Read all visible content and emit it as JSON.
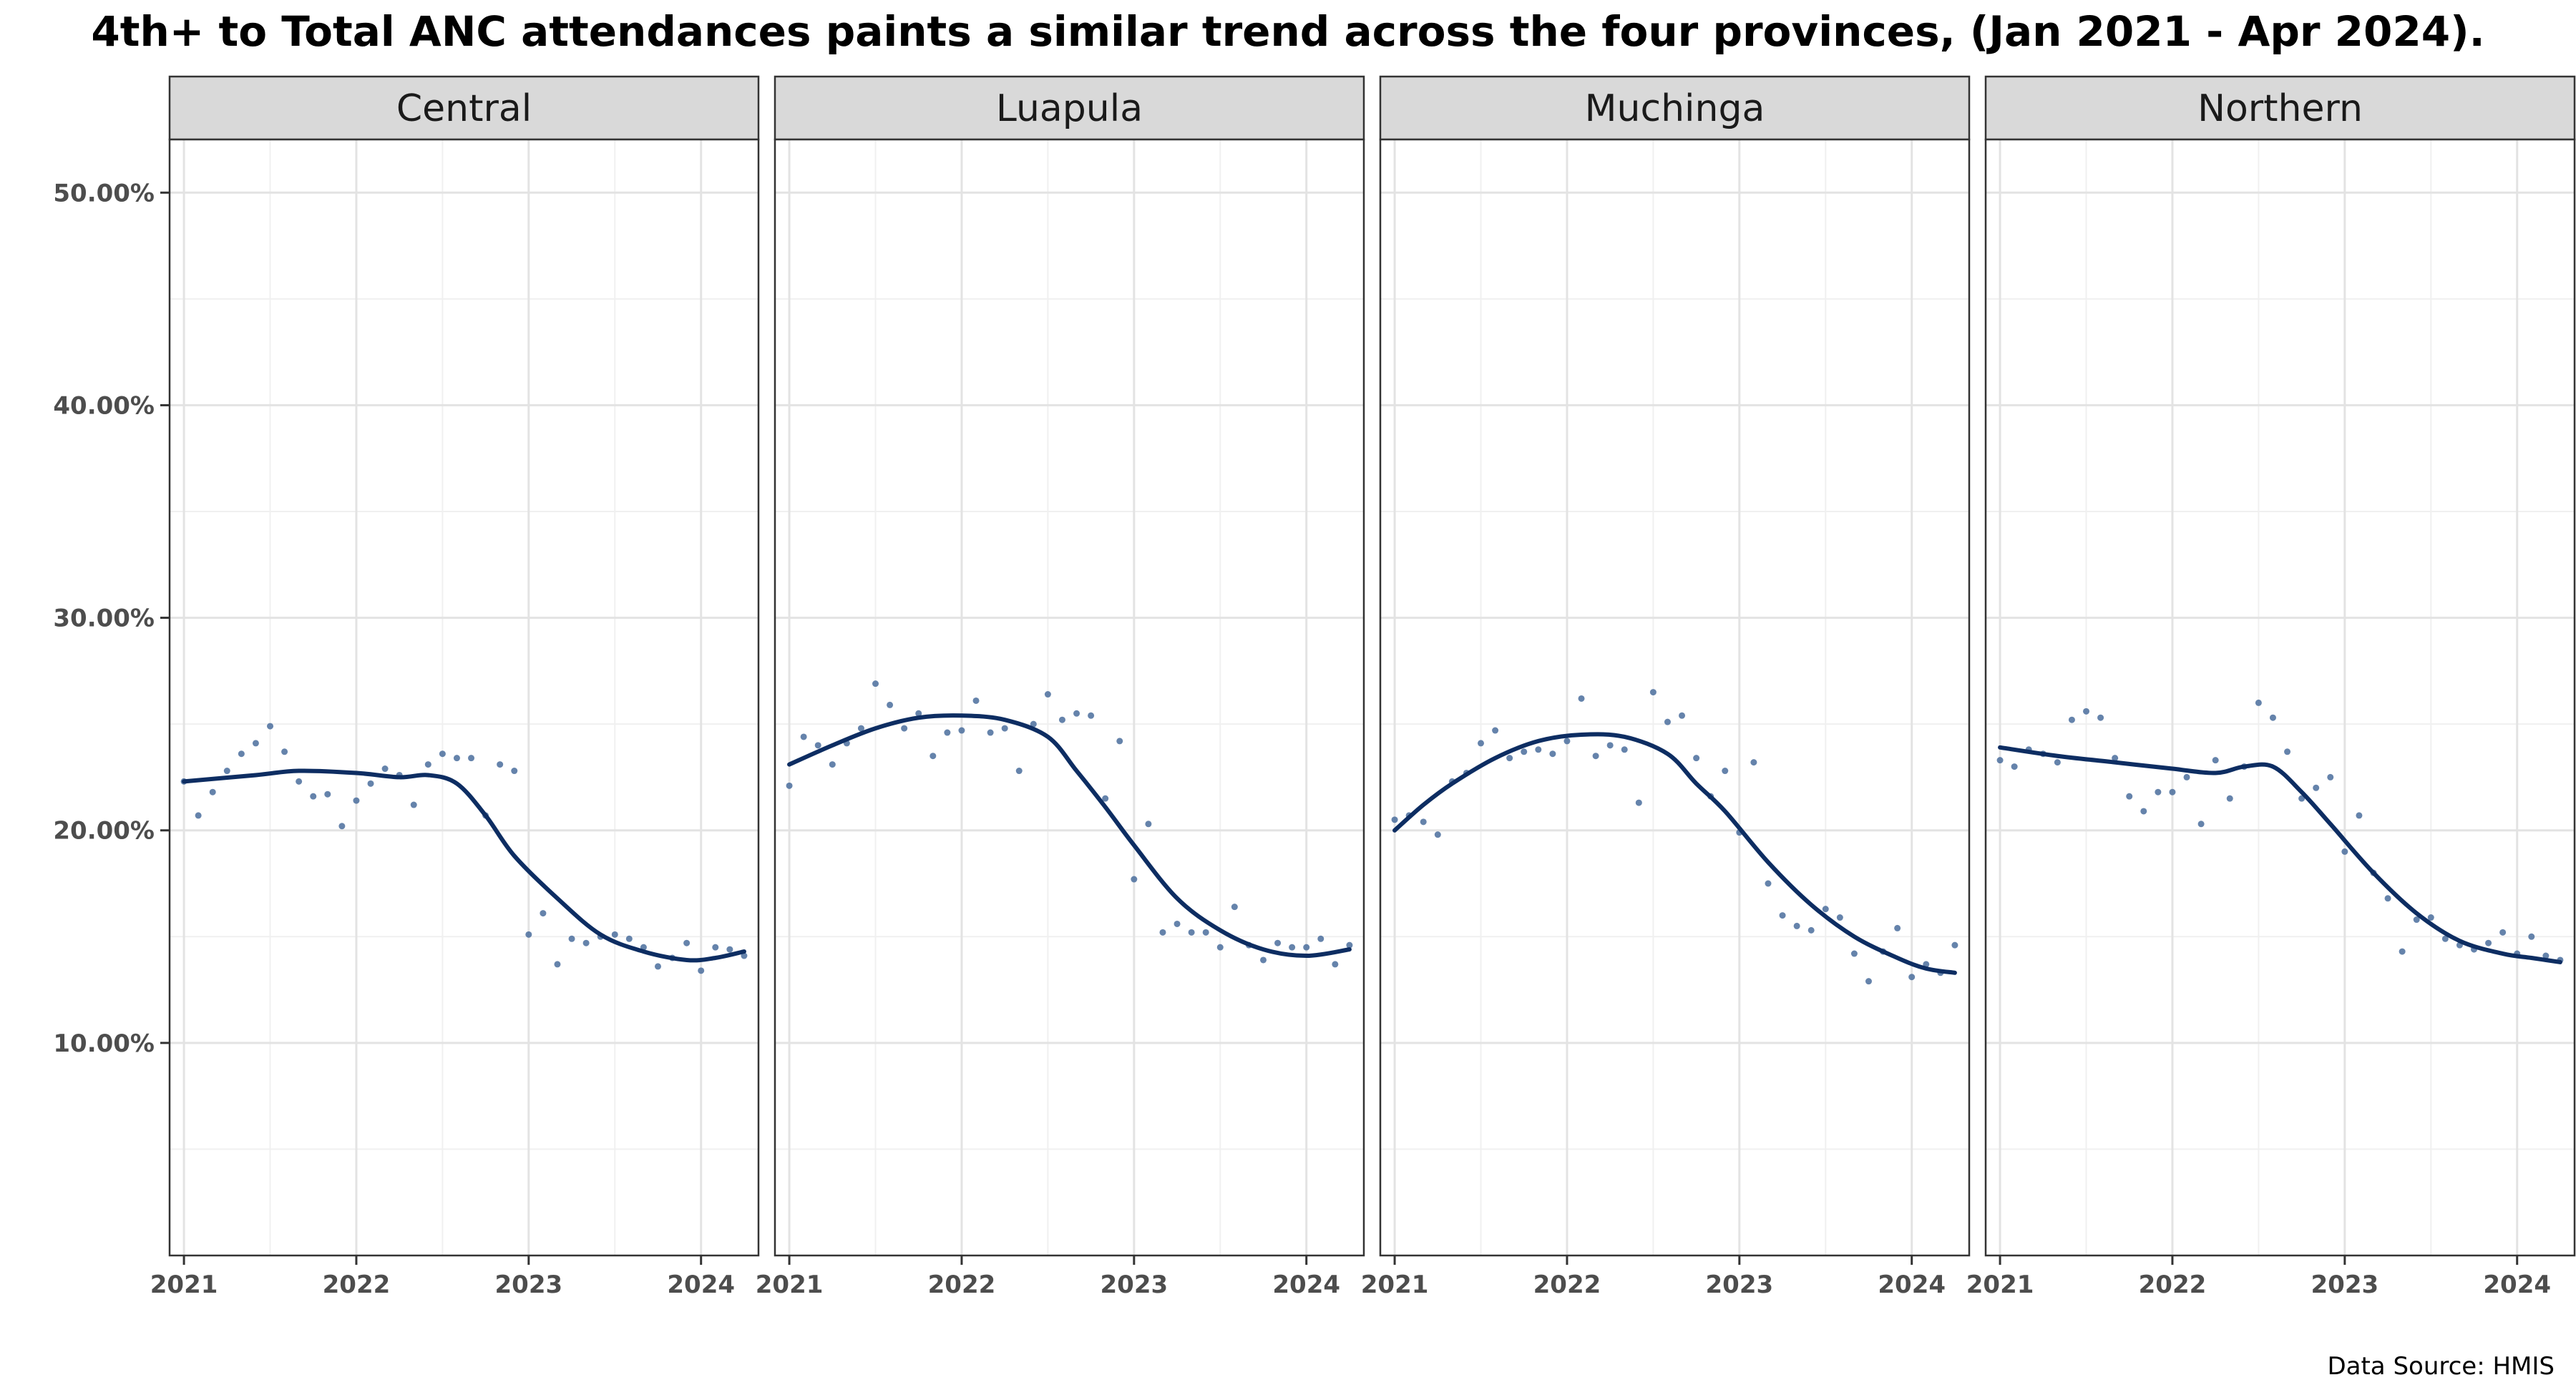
{
  "chart_data": {
    "type": "scatter",
    "title": "4th+ to Total ANC attendances paints a similar trend across the four provinces, (Jan 2021 - Apr 2024).",
    "caption": "Data Source: HMIS",
    "x_ticks": [
      "2021",
      "2022",
      "2023",
      "2024"
    ],
    "y_ticks": [
      "10.00%",
      "20.00%",
      "30.00%",
      "40.00%",
      "50.00%"
    ],
    "y_tick_values": [
      10,
      20,
      30,
      40,
      50
    ],
    "xlim": [
      "2020-12",
      "2024-05"
    ],
    "ylim": [
      0,
      52.5
    ],
    "grid": true,
    "series_color": "#4a6d9c",
    "trend_color": "#0d2d62",
    "panels": [
      {
        "name": "Central",
        "points": [
          [
            "2021-01",
            22.3
          ],
          [
            "2021-02",
            20.7
          ],
          [
            "2021-03",
            21.8
          ],
          [
            "2021-04",
            22.8
          ],
          [
            "2021-05",
            23.6
          ],
          [
            "2021-06",
            24.1
          ],
          [
            "2021-07",
            24.9
          ],
          [
            "2021-08",
            23.7
          ],
          [
            "2021-09",
            22.3
          ],
          [
            "2021-10",
            21.6
          ],
          [
            "2021-11",
            21.7
          ],
          [
            "2021-12",
            20.2
          ],
          [
            "2022-01",
            21.4
          ],
          [
            "2022-02",
            22.2
          ],
          [
            "2022-03",
            22.9
          ],
          [
            "2022-04",
            22.6
          ],
          [
            "2022-05",
            21.2
          ],
          [
            "2022-06",
            23.1
          ],
          [
            "2022-07",
            23.6
          ],
          [
            "2022-08",
            23.4
          ],
          [
            "2022-09",
            23.4
          ],
          [
            "2022-10",
            20.7
          ],
          [
            "2022-11",
            23.1
          ],
          [
            "2022-12",
            22.8
          ],
          [
            "2023-01",
            15.1
          ],
          [
            "2023-02",
            16.1
          ],
          [
            "2023-03",
            13.7
          ],
          [
            "2023-04",
            14.9
          ],
          [
            "2023-05",
            14.7
          ],
          [
            "2023-06",
            15.0
          ],
          [
            "2023-07",
            15.1
          ],
          [
            "2023-08",
            14.9
          ],
          [
            "2023-09",
            14.5
          ],
          [
            "2023-10",
            13.6
          ],
          [
            "2023-11",
            14.0
          ],
          [
            "2023-12",
            14.7
          ],
          [
            "2024-01",
            13.4
          ],
          [
            "2024-02",
            14.5
          ],
          [
            "2024-03",
            14.4
          ],
          [
            "2024-04",
            14.1
          ]
        ],
        "trend": [
          [
            "2021-01",
            22.3
          ],
          [
            "2021-06",
            22.6
          ],
          [
            "2021-09",
            22.8
          ],
          [
            "2022-01",
            22.7
          ],
          [
            "2022-04",
            22.5
          ],
          [
            "2022-06",
            22.6
          ],
          [
            "2022-08",
            22.2
          ],
          [
            "2022-10",
            20.7
          ],
          [
            "2022-12",
            18.8
          ],
          [
            "2023-03",
            16.8
          ],
          [
            "2023-06",
            15.1
          ],
          [
            "2023-09",
            14.3
          ],
          [
            "2023-12",
            13.9
          ],
          [
            "2024-02",
            14.0
          ],
          [
            "2024-04",
            14.3
          ]
        ]
      },
      {
        "name": "Luapula",
        "points": [
          [
            "2021-01",
            22.1
          ],
          [
            "2021-02",
            24.4
          ],
          [
            "2021-03",
            24.0
          ],
          [
            "2021-04",
            23.1
          ],
          [
            "2021-05",
            24.1
          ],
          [
            "2021-06",
            24.8
          ],
          [
            "2021-07",
            26.9
          ],
          [
            "2021-08",
            25.9
          ],
          [
            "2021-09",
            24.8
          ],
          [
            "2021-10",
            25.5
          ],
          [
            "2021-11",
            23.5
          ],
          [
            "2021-12",
            24.6
          ],
          [
            "2022-01",
            24.7
          ],
          [
            "2022-02",
            26.1
          ],
          [
            "2022-03",
            24.6
          ],
          [
            "2022-04",
            24.8
          ],
          [
            "2022-05",
            22.8
          ],
          [
            "2022-06",
            25.0
          ],
          [
            "2022-07",
            26.4
          ],
          [
            "2022-08",
            25.2
          ],
          [
            "2022-09",
            25.5
          ],
          [
            "2022-10",
            25.4
          ],
          [
            "2022-11",
            21.5
          ],
          [
            "2022-12",
            24.2
          ],
          [
            "2023-01",
            17.7
          ],
          [
            "2023-02",
            20.3
          ],
          [
            "2023-03",
            15.2
          ],
          [
            "2023-04",
            15.6
          ],
          [
            "2023-05",
            15.2
          ],
          [
            "2023-06",
            15.2
          ],
          [
            "2023-07",
            14.5
          ],
          [
            "2023-08",
            16.4
          ],
          [
            "2023-09",
            14.6
          ],
          [
            "2023-10",
            13.9
          ],
          [
            "2023-11",
            14.7
          ],
          [
            "2023-12",
            14.5
          ],
          [
            "2024-01",
            14.5
          ],
          [
            "2024-02",
            14.9
          ],
          [
            "2024-03",
            13.7
          ],
          [
            "2024-04",
            14.6
          ]
        ],
        "trend": [
          [
            "2021-01",
            23.1
          ],
          [
            "2021-04",
            24.0
          ],
          [
            "2021-07",
            24.8
          ],
          [
            "2021-10",
            25.3
          ],
          [
            "2022-01",
            25.4
          ],
          [
            "2022-04",
            25.2
          ],
          [
            "2022-07",
            24.4
          ],
          [
            "2022-09",
            22.8
          ],
          [
            "2022-11",
            21.1
          ],
          [
            "2023-01",
            19.3
          ],
          [
            "2023-04",
            16.8
          ],
          [
            "2023-07",
            15.3
          ],
          [
            "2023-10",
            14.4
          ],
          [
            "2024-01",
            14.1
          ],
          [
            "2024-04",
            14.4
          ]
        ]
      },
      {
        "name": "Muchinga",
        "points": [
          [
            "2021-01",
            20.5
          ],
          [
            "2021-02",
            20.7
          ],
          [
            "2021-03",
            20.4
          ],
          [
            "2021-04",
            19.8
          ],
          [
            "2021-05",
            22.3
          ],
          [
            "2021-06",
            22.7
          ],
          [
            "2021-07",
            24.1
          ],
          [
            "2021-08",
            24.7
          ],
          [
            "2021-09",
            23.4
          ],
          [
            "2021-10",
            23.7
          ],
          [
            "2021-11",
            23.8
          ],
          [
            "2021-12",
            23.6
          ],
          [
            "2022-01",
            24.2
          ],
          [
            "2022-02",
            26.2
          ],
          [
            "2022-03",
            23.5
          ],
          [
            "2022-04",
            24.0
          ],
          [
            "2022-05",
            23.8
          ],
          [
            "2022-06",
            21.3
          ],
          [
            "2022-07",
            26.5
          ],
          [
            "2022-08",
            25.1
          ],
          [
            "2022-09",
            25.4
          ],
          [
            "2022-10",
            23.4
          ],
          [
            "2022-11",
            21.6
          ],
          [
            "2022-12",
            22.8
          ],
          [
            "2023-01",
            19.9
          ],
          [
            "2023-02",
            23.2
          ],
          [
            "2023-03",
            17.5
          ],
          [
            "2023-04",
            16.0
          ],
          [
            "2023-05",
            15.5
          ],
          [
            "2023-06",
            15.3
          ],
          [
            "2023-07",
            16.3
          ],
          [
            "2023-08",
            15.9
          ],
          [
            "2023-09",
            14.2
          ],
          [
            "2023-10",
            12.9
          ],
          [
            "2023-11",
            14.3
          ],
          [
            "2023-12",
            15.4
          ],
          [
            "2024-01",
            13.1
          ],
          [
            "2024-02",
            13.7
          ],
          [
            "2024-03",
            13.3
          ],
          [
            "2024-04",
            14.6
          ]
        ],
        "trend": [
          [
            "2021-01",
            20.0
          ],
          [
            "2021-03",
            21.2
          ],
          [
            "2021-05",
            22.2
          ],
          [
            "2021-08",
            23.4
          ],
          [
            "2021-11",
            24.2
          ],
          [
            "2022-02",
            24.5
          ],
          [
            "2022-05",
            24.4
          ],
          [
            "2022-08",
            23.6
          ],
          [
            "2022-10",
            22.2
          ],
          [
            "2022-12",
            20.9
          ],
          [
            "2023-03",
            18.5
          ],
          [
            "2023-06",
            16.5
          ],
          [
            "2023-09",
            15.0
          ],
          [
            "2023-12",
            14.0
          ],
          [
            "2024-02",
            13.5
          ],
          [
            "2024-04",
            13.3
          ]
        ]
      },
      {
        "name": "Northern",
        "points": [
          [
            "2021-01",
            23.3
          ],
          [
            "2021-02",
            23.0
          ],
          [
            "2021-03",
            23.8
          ],
          [
            "2021-04",
            23.6
          ],
          [
            "2021-05",
            23.2
          ],
          [
            "2021-06",
            25.2
          ],
          [
            "2021-07",
            25.6
          ],
          [
            "2021-08",
            25.3
          ],
          [
            "2021-09",
            23.4
          ],
          [
            "2021-10",
            21.6
          ],
          [
            "2021-11",
            20.9
          ],
          [
            "2021-12",
            21.8
          ],
          [
            "2022-01",
            21.8
          ],
          [
            "2022-02",
            22.5
          ],
          [
            "2022-03",
            20.3
          ],
          [
            "2022-04",
            23.3
          ],
          [
            "2022-05",
            21.5
          ],
          [
            "2022-06",
            23.0
          ],
          [
            "2022-07",
            26.0
          ],
          [
            "2022-08",
            25.3
          ],
          [
            "2022-09",
            23.7
          ],
          [
            "2022-10",
            21.5
          ],
          [
            "2022-11",
            22.0
          ],
          [
            "2022-12",
            22.5
          ],
          [
            "2023-01",
            19.0
          ],
          [
            "2023-02",
            20.7
          ],
          [
            "2023-03",
            18.0
          ],
          [
            "2023-04",
            16.8
          ],
          [
            "2023-05",
            14.3
          ],
          [
            "2023-06",
            15.8
          ],
          [
            "2023-07",
            15.9
          ],
          [
            "2023-08",
            14.9
          ],
          [
            "2023-09",
            14.6
          ],
          [
            "2023-10",
            14.4
          ],
          [
            "2023-11",
            14.7
          ],
          [
            "2023-12",
            15.2
          ],
          [
            "2024-01",
            14.2
          ],
          [
            "2024-02",
            15.0
          ],
          [
            "2024-03",
            14.1
          ],
          [
            "2024-04",
            13.9
          ]
        ],
        "trend": [
          [
            "2021-01",
            23.9
          ],
          [
            "2021-05",
            23.5
          ],
          [
            "2021-09",
            23.2
          ],
          [
            "2022-01",
            22.9
          ],
          [
            "2022-04",
            22.7
          ],
          [
            "2022-06",
            23.0
          ],
          [
            "2022-08",
            23.0
          ],
          [
            "2022-10",
            21.8
          ],
          [
            "2022-12",
            20.3
          ],
          [
            "2023-03",
            18.0
          ],
          [
            "2023-06",
            16.1
          ],
          [
            "2023-09",
            14.8
          ],
          [
            "2023-12",
            14.2
          ],
          [
            "2024-02",
            14.0
          ],
          [
            "2024-04",
            13.8
          ]
        ]
      }
    ]
  }
}
